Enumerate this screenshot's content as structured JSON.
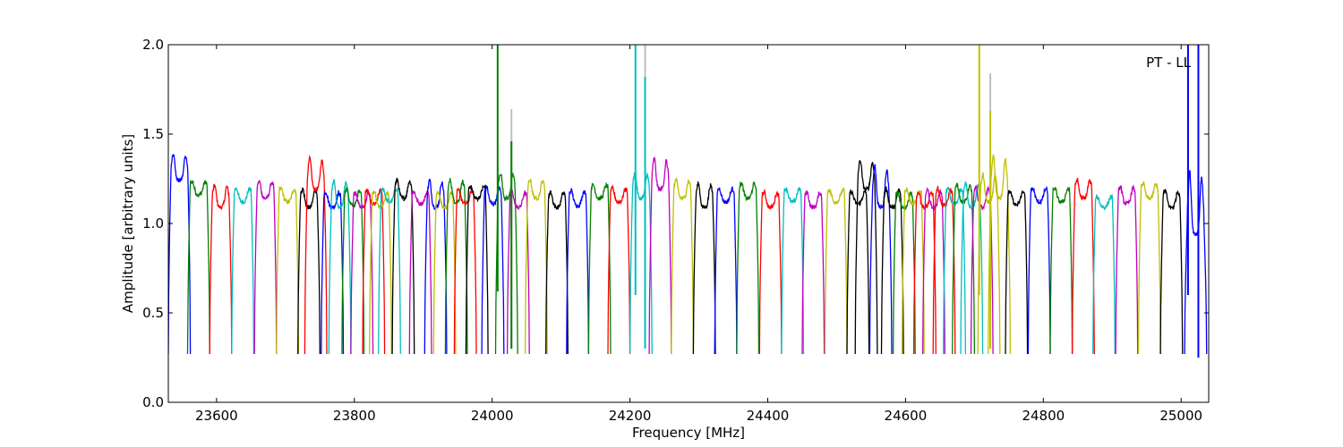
{
  "chart_data": {
    "type": "line",
    "title": "",
    "annotation": "PT - LL",
    "xlabel": "Frequency [MHz]",
    "ylabel": "Amplitude [arbitrary units]",
    "xlim": [
      23530,
      25040
    ],
    "ylim": [
      0.0,
      2.0
    ],
    "x_ticks": [
      23600,
      23800,
      24000,
      24200,
      24400,
      24600,
      24800,
      25000
    ],
    "y_ticks": [
      0.0,
      0.5,
      1.0,
      1.5,
      2.0
    ],
    "x_tick_labels": [
      "23600",
      "23800",
      "24000",
      "24200",
      "24400",
      "24600",
      "24800",
      "25000"
    ],
    "y_tick_labels": [
      "0.0",
      "0.5",
      "1.0",
      "1.5",
      "2.0"
    ],
    "grid": false,
    "legend": "none",
    "palette": [
      "#0000ff",
      "#008000",
      "#ff0000",
      "#00bfbf",
      "#bf00bf",
      "#bfbf00",
      "#000000"
    ],
    "spike_color": "#bfbfbf",
    "subband_width_mhz": 32,
    "subbands": [
      {
        "start": 23530,
        "level": 1.3,
        "peak": 1.41,
        "color": "#0000ff"
      },
      {
        "start": 23558,
        "level": 1.22,
        "peak": 1.26,
        "color": "#008000"
      },
      {
        "start": 23590,
        "level": 1.15,
        "peak": 1.24,
        "color": "#ff0000"
      },
      {
        "start": 23622,
        "level": 1.18,
        "peak": 1.22,
        "color": "#00bfbf"
      },
      {
        "start": 23655,
        "level": 1.2,
        "peak": 1.26,
        "color": "#bf00bf"
      },
      {
        "start": 23687,
        "level": 1.18,
        "peak": 1.22,
        "color": "#bfbf00"
      },
      {
        "start": 23718,
        "level": 1.15,
        "peak": 1.22,
        "color": "#000000"
      },
      {
        "start": 23728,
        "level": 1.25,
        "peak": 1.39,
        "color": "#ff0000"
      },
      {
        "start": 23752,
        "level": 1.15,
        "peak": 1.2,
        "color": "#0000ff"
      },
      {
        "start": 23763,
        "level": 1.15,
        "peak": 1.27,
        "color": "#00bfbf"
      },
      {
        "start": 23782,
        "level": 1.16,
        "peak": 1.22,
        "color": "#008000"
      },
      {
        "start": 23795,
        "level": 1.15,
        "peak": 1.2,
        "color": "#bf00bf"
      },
      {
        "start": 23812,
        "level": 1.17,
        "peak": 1.21,
        "color": "#ff0000"
      },
      {
        "start": 23822,
        "level": 1.15,
        "peak": 1.2,
        "color": "#bfbf00"
      },
      {
        "start": 23835,
        "level": 1.18,
        "peak": 1.22,
        "color": "#00bfbf"
      },
      {
        "start": 23855,
        "level": 1.2,
        "peak": 1.27,
        "color": "#000000"
      },
      {
        "start": 23880,
        "level": 1.17,
        "peak": 1.2,
        "color": "#bf00bf"
      },
      {
        "start": 23902,
        "level": 1.15,
        "peak": 1.27,
        "color": "#0000ff"
      },
      {
        "start": 23915,
        "level": 1.15,
        "peak": 1.2,
        "color": "#bfbf00"
      },
      {
        "start": 23932,
        "level": 1.18,
        "peak": 1.27,
        "color": "#008000"
      },
      {
        "start": 23945,
        "level": 1.17,
        "peak": 1.21,
        "color": "#ff0000"
      },
      {
        "start": 23962,
        "level": 1.2,
        "peak": 1.23,
        "color": "#000000"
      },
      {
        "start": 23985,
        "level": 1.17,
        "peak": 1.23,
        "color": "#0000ff"
      },
      {
        "start": 24005,
        "level": 1.2,
        "peak": 1.31,
        "color": "#008000"
      },
      {
        "start": 24022,
        "level": 1.15,
        "peak": 1.2,
        "color": "#bf00bf"
      },
      {
        "start": 24048,
        "level": 1.2,
        "peak": 1.27,
        "color": "#bfbf00"
      },
      {
        "start": 24078,
        "level": 1.15,
        "peak": 1.2,
        "color": "#000000"
      },
      {
        "start": 24108,
        "level": 1.16,
        "peak": 1.21,
        "color": "#0000ff"
      },
      {
        "start": 24140,
        "level": 1.2,
        "peak": 1.24,
        "color": "#008000"
      },
      {
        "start": 24168,
        "level": 1.18,
        "peak": 1.22,
        "color": "#ff0000"
      },
      {
        "start": 24200,
        "level": 1.2,
        "peak": 1.31,
        "color": "#00bfbf"
      },
      {
        "start": 24228,
        "level": 1.25,
        "peak": 1.39,
        "color": "#bf00bf"
      },
      {
        "start": 24260,
        "level": 1.2,
        "peak": 1.27,
        "color": "#bfbf00"
      },
      {
        "start": 24292,
        "level": 1.15,
        "peak": 1.25,
        "color": "#000000"
      },
      {
        "start": 24323,
        "level": 1.18,
        "peak": 1.22,
        "color": "#0000ff"
      },
      {
        "start": 24355,
        "level": 1.2,
        "peak": 1.25,
        "color": "#008000"
      },
      {
        "start": 24388,
        "level": 1.15,
        "peak": 1.2,
        "color": "#ff0000"
      },
      {
        "start": 24420,
        "level": 1.18,
        "peak": 1.22,
        "color": "#00bfbf"
      },
      {
        "start": 24450,
        "level": 1.15,
        "peak": 1.2,
        "color": "#bf00bf"
      },
      {
        "start": 24483,
        "level": 1.18,
        "peak": 1.21,
        "color": "#bfbf00"
      },
      {
        "start": 24515,
        "level": 1.17,
        "peak": 1.2,
        "color": "#000000"
      },
      {
        "start": 24527,
        "level": 1.25,
        "peak": 1.38,
        "color": "#000000"
      },
      {
        "start": 24548,
        "level": 1.15,
        "peak": 1.35,
        "color": "#0000ff"
      },
      {
        "start": 24565,
        "level": 1.15,
        "peak": 1.22,
        "color": "#000000"
      },
      {
        "start": 24582,
        "level": 1.15,
        "peak": 1.2,
        "color": "#008000"
      },
      {
        "start": 24595,
        "level": 1.17,
        "peak": 1.21,
        "color": "#bfbf00"
      },
      {
        "start": 24612,
        "level": 1.15,
        "peak": 1.2,
        "color": "#ff0000"
      },
      {
        "start": 24625,
        "level": 1.15,
        "peak": 1.21,
        "color": "#bf00bf"
      },
      {
        "start": 24640,
        "level": 1.16,
        "peak": 1.22,
        "color": "#ff0000"
      },
      {
        "start": 24655,
        "level": 1.17,
        "peak": 1.22,
        "color": "#00bfbf"
      },
      {
        "start": 24668,
        "level": 1.18,
        "peak": 1.24,
        "color": "#008000"
      },
      {
        "start": 24680,
        "level": 1.15,
        "peak": 1.25,
        "color": "#00bfbf"
      },
      {
        "start": 24695,
        "level": 1.15,
        "peak": 1.23,
        "color": "#bf00bf"
      },
      {
        "start": 24705,
        "level": 1.18,
        "peak": 1.3,
        "color": "#bfbf00"
      },
      {
        "start": 24720,
        "level": 1.2,
        "peak": 1.41,
        "color": "#bfbf00"
      },
      {
        "start": 24745,
        "level": 1.17,
        "peak": 1.2,
        "color": "#000000"
      },
      {
        "start": 24778,
        "level": 1.18,
        "peak": 1.22,
        "color": "#0000ff"
      },
      {
        "start": 24810,
        "level": 1.18,
        "peak": 1.22,
        "color": "#008000"
      },
      {
        "start": 24842,
        "level": 1.2,
        "peak": 1.27,
        "color": "#ff0000"
      },
      {
        "start": 24872,
        "level": 1.15,
        "peak": 1.17,
        "color": "#00bfbf"
      },
      {
        "start": 24905,
        "level": 1.17,
        "peak": 1.23,
        "color": "#bf00bf"
      },
      {
        "start": 24938,
        "level": 1.2,
        "peak": 1.25,
        "color": "#bfbf00"
      },
      {
        "start": 24970,
        "level": 1.15,
        "peak": 1.21,
        "color": "#000000"
      },
      {
        "start": 25005,
        "level": 1.0,
        "peak": 1.32,
        "color": "#0000ff"
      }
    ],
    "spikes": [
      {
        "x": 24008,
        "from": 0.62,
        "to": 2.0,
        "color": "#008000"
      },
      {
        "x": 24028,
        "from": 0.3,
        "to": 1.64,
        "color": "#bfbfbf"
      },
      {
        "x": 24028,
        "from": 0.3,
        "to": 1.46,
        "color": "#008000"
      },
      {
        "x": 24208,
        "from": 0.6,
        "to": 2.0,
        "color": "#00bfbf"
      },
      {
        "x": 24222,
        "from": 0.3,
        "to": 2.0,
        "color": "#bfbfbf"
      },
      {
        "x": 24222,
        "from": 0.3,
        "to": 1.82,
        "color": "#00bfbf"
      },
      {
        "x": 24707,
        "from": 0.6,
        "to": 2.0,
        "color": "#bfbf00"
      },
      {
        "x": 24723,
        "from": 0.3,
        "to": 1.84,
        "color": "#bfbfbf"
      },
      {
        "x": 24723,
        "from": 0.3,
        "to": 1.63,
        "color": "#bfbf00"
      },
      {
        "x": 25010,
        "from": 0.6,
        "to": 2.0,
        "color": "#0000ff"
      },
      {
        "x": 25025,
        "from": 0.25,
        "to": 2.0,
        "color": "#0000ff"
      }
    ],
    "dip_floor": 0.27
  }
}
